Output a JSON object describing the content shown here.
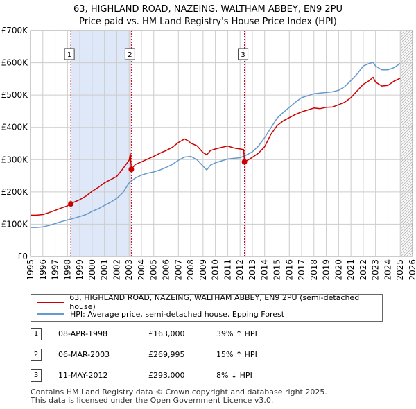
{
  "title_line1": "63, HIGHLAND ROAD, NAZEING, WALTHAM ABBEY, EN9 2PU",
  "title_line2": "Price paid vs. HM Land Registry's House Price Index (HPI)",
  "colors": {
    "red": "#cc0000",
    "blue": "#6699cc",
    "band": "#dfe8f8",
    "grid": "#cccccc",
    "vline": "#cc0000"
  },
  "chart_data": {
    "type": "line",
    "xlim": [
      1995,
      2026
    ],
    "ylim": [
      0,
      700000
    ],
    "y_ticks": [
      0,
      100000,
      200000,
      300000,
      400000,
      500000,
      600000,
      700000
    ],
    "y_tick_labels": [
      "£0",
      "£100K",
      "£200K",
      "£300K",
      "£400K",
      "£500K",
      "£600K",
      "£700K"
    ],
    "x_ticks": [
      1995,
      1996,
      1997,
      1998,
      1999,
      2000,
      2001,
      2002,
      2003,
      2004,
      2005,
      2006,
      2007,
      2008,
      2009,
      2010,
      2011,
      2012,
      2013,
      2014,
      2015,
      2016,
      2017,
      2018,
      2019,
      2020,
      2021,
      2022,
      2023,
      2024,
      2025,
      2026
    ],
    "x_tick_labels": [
      "1995",
      "1996",
      "1997",
      "1998",
      "1999",
      "2000",
      "2001",
      "2002",
      "2003",
      "2004",
      "2005",
      "2006",
      "2007",
      "2008",
      "2009",
      "2010",
      "2011",
      "2012",
      "2013",
      "2014",
      "2015",
      "2016",
      "2017",
      "2018",
      "2019",
      "2020",
      "2021",
      "2022",
      "2023",
      "2024",
      "2025",
      "2026"
    ],
    "shaded_bands": [
      [
        1998.27,
        2003.18
      ],
      [
        2012.36,
        2012.5
      ]
    ],
    "hatched_from": 2025.0,
    "series": [
      {
        "name": "63, HIGHLAND ROAD, NAZEING, WALTHAM ABBEY, EN9 2PU (semi-detached house)",
        "color": "#cc0000",
        "x": [
          1995.0,
          1995.5,
          1996.0,
          1996.5,
          1997.0,
          1997.5,
          1998.0,
          1998.27,
          1998.5,
          1999.0,
          1999.5,
          2000.0,
          2000.5,
          2001.0,
          2001.5,
          2002.0,
          2002.5,
          2003.0,
          2003.1,
          2003.18,
          2003.5,
          2004.0,
          2004.5,
          2005.0,
          2005.5,
          2006.0,
          2006.5,
          2007.0,
          2007.5,
          2007.8,
          2008.0,
          2008.5,
          2009.0,
          2009.3,
          2009.6,
          2010.0,
          2010.5,
          2011.0,
          2011.5,
          2012.0,
          2012.3,
          2012.36,
          2012.7,
          2013.0,
          2013.5,
          2014.0,
          2014.5,
          2015.0,
          2015.5,
          2016.0,
          2016.5,
          2017.0,
          2017.5,
          2018.0,
          2018.5,
          2019.0,
          2019.5,
          2020.0,
          2020.5,
          2021.0,
          2021.5,
          2022.0,
          2022.5,
          2022.8,
          2023.0,
          2023.5,
          2024.0,
          2024.5,
          2025.0
        ],
        "y": [
          128000,
          128000,
          130000,
          136000,
          143000,
          150000,
          157000,
          163000,
          168000,
          176000,
          187000,
          202000,
          214000,
          228000,
          238000,
          248000,
          272000,
          298000,
          318000,
          269995,
          285000,
          293000,
          302000,
          310000,
          320000,
          328000,
          338000,
          353000,
          364000,
          358000,
          351000,
          343000,
          322000,
          315000,
          328000,
          333000,
          338000,
          342000,
          336000,
          333000,
          331000,
          293000,
          300000,
          307000,
          320000,
          340000,
          378000,
          405000,
          420000,
          430000,
          440000,
          448000,
          454000,
          460000,
          458000,
          462000,
          463000,
          470000,
          478000,
          492000,
          513000,
          533000,
          545000,
          555000,
          540000,
          528000,
          530000,
          543000,
          552000
        ]
      },
      {
        "name": "HPI: Average price, semi-detached house, Epping Forest",
        "color": "#6699cc",
        "x": [
          1995.0,
          1995.5,
          1996.0,
          1996.5,
          1997.0,
          1997.5,
          1998.0,
          1998.5,
          1999.0,
          1999.5,
          2000.0,
          2000.5,
          2001.0,
          2001.5,
          2002.0,
          2002.5,
          2003.0,
          2003.5,
          2004.0,
          2004.5,
          2005.0,
          2005.5,
          2006.0,
          2006.5,
          2007.0,
          2007.5,
          2008.0,
          2008.5,
          2009.0,
          2009.3,
          2009.6,
          2010.0,
          2010.5,
          2011.0,
          2011.5,
          2012.0,
          2012.5,
          2013.0,
          2013.5,
          2014.0,
          2014.5,
          2015.0,
          2015.5,
          2016.0,
          2016.5,
          2017.0,
          2017.5,
          2018.0,
          2018.5,
          2019.0,
          2019.5,
          2020.0,
          2020.5,
          2021.0,
          2021.5,
          2022.0,
          2022.5,
          2022.8,
          2023.0,
          2023.5,
          2024.0,
          2024.5,
          2025.0
        ],
        "y": [
          90000,
          90000,
          92000,
          96000,
          102000,
          108000,
          113000,
          118000,
          124000,
          130000,
          140000,
          148000,
          158000,
          168000,
          180000,
          198000,
          228000,
          243000,
          252000,
          258000,
          262000,
          268000,
          276000,
          285000,
          298000,
          308000,
          310000,
          300000,
          280000,
          268000,
          283000,
          290000,
          296000,
          302000,
          304000,
          306000,
          314000,
          324000,
          342000,
          368000,
          398000,
          428000,
          446000,
          462000,
          478000,
          492000,
          498000,
          504000,
          506000,
          508000,
          510000,
          515000,
          526000,
          545000,
          565000,
          590000,
          598000,
          601000,
          590000,
          578000,
          578000,
          585000,
          598000
        ]
      }
    ],
    "sale_markers": [
      {
        "label": "1",
        "x": 1998.27,
        "y": 163000
      },
      {
        "label": "2",
        "x": 2003.18,
        "y": 269995
      },
      {
        "label": "3",
        "x": 2012.36,
        "y": 293000
      }
    ],
    "box_y_value": 625000
  },
  "legend": {
    "red_label": "63, HIGHLAND ROAD, NAZEING, WALTHAM ABBEY, EN9 2PU (semi-detached house)",
    "blue_label": "HPI: Average price, semi-detached house, Epping Forest"
  },
  "sales": [
    {
      "num": "1",
      "date": "08-APR-1998",
      "price": "£163,000",
      "hpi": "39% ↑ HPI"
    },
    {
      "num": "2",
      "date": "06-MAR-2003",
      "price": "£269,995",
      "hpi": "15% ↑ HPI"
    },
    {
      "num": "3",
      "date": "11-MAY-2012",
      "price": "£293,000",
      "hpi": "8% ↓ HPI"
    }
  ],
  "footer_line1": "Contains HM Land Registry data © Crown copyright and database right 2025.",
  "footer_line2": "This data is licensed under the Open Government Licence v3.0."
}
